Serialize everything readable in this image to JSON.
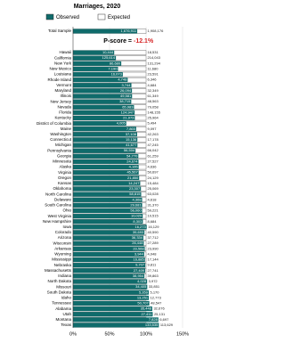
{
  "chart_data": {
    "type": "bar",
    "title": "Marriages, 2020",
    "total_label": "Total Sample",
    "total_values": [
      1676911,
      1908176
    ],
    "total_value_labels": [
      "1,676,911",
      "1,908,176"
    ],
    "pscore_label": "P-score =",
    "pscore": "-12.1%",
    "categories": [
      "Hawaii",
      "California",
      "New York",
      "New Mexico",
      "Louisiana",
      "Rhode Island",
      "Vermont",
      "Maryland",
      "Illinois",
      "New Jersey",
      "Nevada",
      "Florida",
      "Kentucky",
      "District of Columbia",
      "Maine",
      "Washington",
      "Connecticut",
      "Michigan",
      "Pennsylvania",
      "Georgia",
      "Minnesota",
      "Alaska",
      "Virginia",
      "Oregon",
      "Kansas",
      "Oklahoma",
      "North Carolina",
      "Delaware",
      "South Carolina",
      "Ohio",
      "West Virginia",
      "New Hampshire",
      "Iowa",
      "Colorado",
      "Arizona",
      "Wisconsin",
      "Arkansas",
      "Wyoming",
      "Mississippi",
      "Nebraska",
      "Massachusetts",
      "Indiana",
      "North Dakota",
      "Missouri",
      "South Dakota",
      "Idaho",
      "Tennessee",
      "Alabama",
      "Utah",
      "Montana",
      "Texas"
    ],
    "series": [
      {
        "name": "Observed",
        "color": "#0f6b6b",
        "values": [
          10444,
          125614,
          86680,
          7190,
          16073,
          4748,
          3744,
          26094,
          49581,
          38715,
          65983,
          124947,
          21973,
          4005,
          7865,
          37108,
          15136,
          41677,
          56504,
          54770,
          24674,
          4165,
          45567,
          21850,
          14247,
          23307,
          58815,
          4368,
          29681,
          56060,
          10029,
          8303,
          16273,
          39693,
          36334,
          26448,
          23568,
          3944,
          16885,
          9707,
          27409,
          38954,
          4028,
          34405,
          5359,
          13251,
          50707,
          35448,
          27411,
          7828,
          133535
        ],
        "value_labels": [
          "10,444",
          "125,614",
          "86,680",
          "7,190",
          "16,073",
          "4,748",
          "3,744",
          "26,094",
          "49,581",
          "38,715",
          "65,983",
          "124,947",
          "21,973",
          "4,005",
          "7,865",
          "37,108",
          "15,136",
          "41,677",
          "56,504",
          "54,770",
          "24,674",
          "4,165",
          "45,567",
          "21,850",
          "14,247",
          "23,307",
          "58,815",
          "4,368",
          "29,681",
          "56,060",
          "10,029",
          "8,303",
          "16,273",
          "39,693",
          "36,334",
          "26,448",
          "23,568",
          "3,944",
          "16,885",
          "9,707",
          "27,409",
          "38,954",
          "4,028",
          "34,405",
          "5,359",
          "13,251",
          "50,707",
          "35,448",
          "27,411",
          "7,828",
          "133,535"
        ]
      },
      {
        "name": "Expected",
        "color": "#ffffff",
        "values": [
          18531,
          214043,
          131294,
          11680,
          23591,
          6346,
          4684,
          32349,
          61349,
          48563,
          79058,
          148155,
          25964,
          5494,
          9097,
          42263,
          17178,
          47245,
          66042,
          61259,
          27527,
          4636,
          50697,
          24129,
          15484,
          25069,
          63028,
          4618,
          31370,
          59221,
          10515,
          8684,
          16129,
          40590,
          37712,
          27289,
          23990,
          4048,
          17144,
          9811,
          27741,
          39863,
          3972,
          33851,
          5170,
          12773,
          48547,
          32676,
          25131,
          6697,
          113629
        ],
        "value_labels": [
          "18,531",
          "214,043",
          "131,294",
          "11,680",
          "23,591",
          "6,346",
          "4,684",
          "32,349",
          "61,349",
          "48,563",
          "79,058",
          "148,155",
          "25,964",
          "5,494",
          "9,097",
          "42,263",
          "17,178",
          "47,245",
          "66,042",
          "61,259",
          "27,527",
          "4,636",
          "50,697",
          "24,129",
          "15,484",
          "25,069",
          "63,028",
          "4,618",
          "31,370",
          "59,221",
          "10,515",
          "8,684",
          "16,129",
          "40,590",
          "37,712",
          "27,289",
          "23,990",
          "4,048",
          "17,144",
          "9,811",
          "27,741",
          "39,863",
          "3,972",
          "33,851",
          "5,170",
          "12,773",
          "48,547",
          "32,676",
          "25,131",
          "6,697",
          "113,629"
        ]
      }
    ],
    "xlim": [
      0,
      150
    ],
    "xticks": [
      {
        "value": 0,
        "label": "0%"
      },
      {
        "value": 50,
        "label": "50%"
      },
      {
        "value": 100,
        "label": "100%"
      },
      {
        "value": 150,
        "label": "150%"
      }
    ]
  }
}
